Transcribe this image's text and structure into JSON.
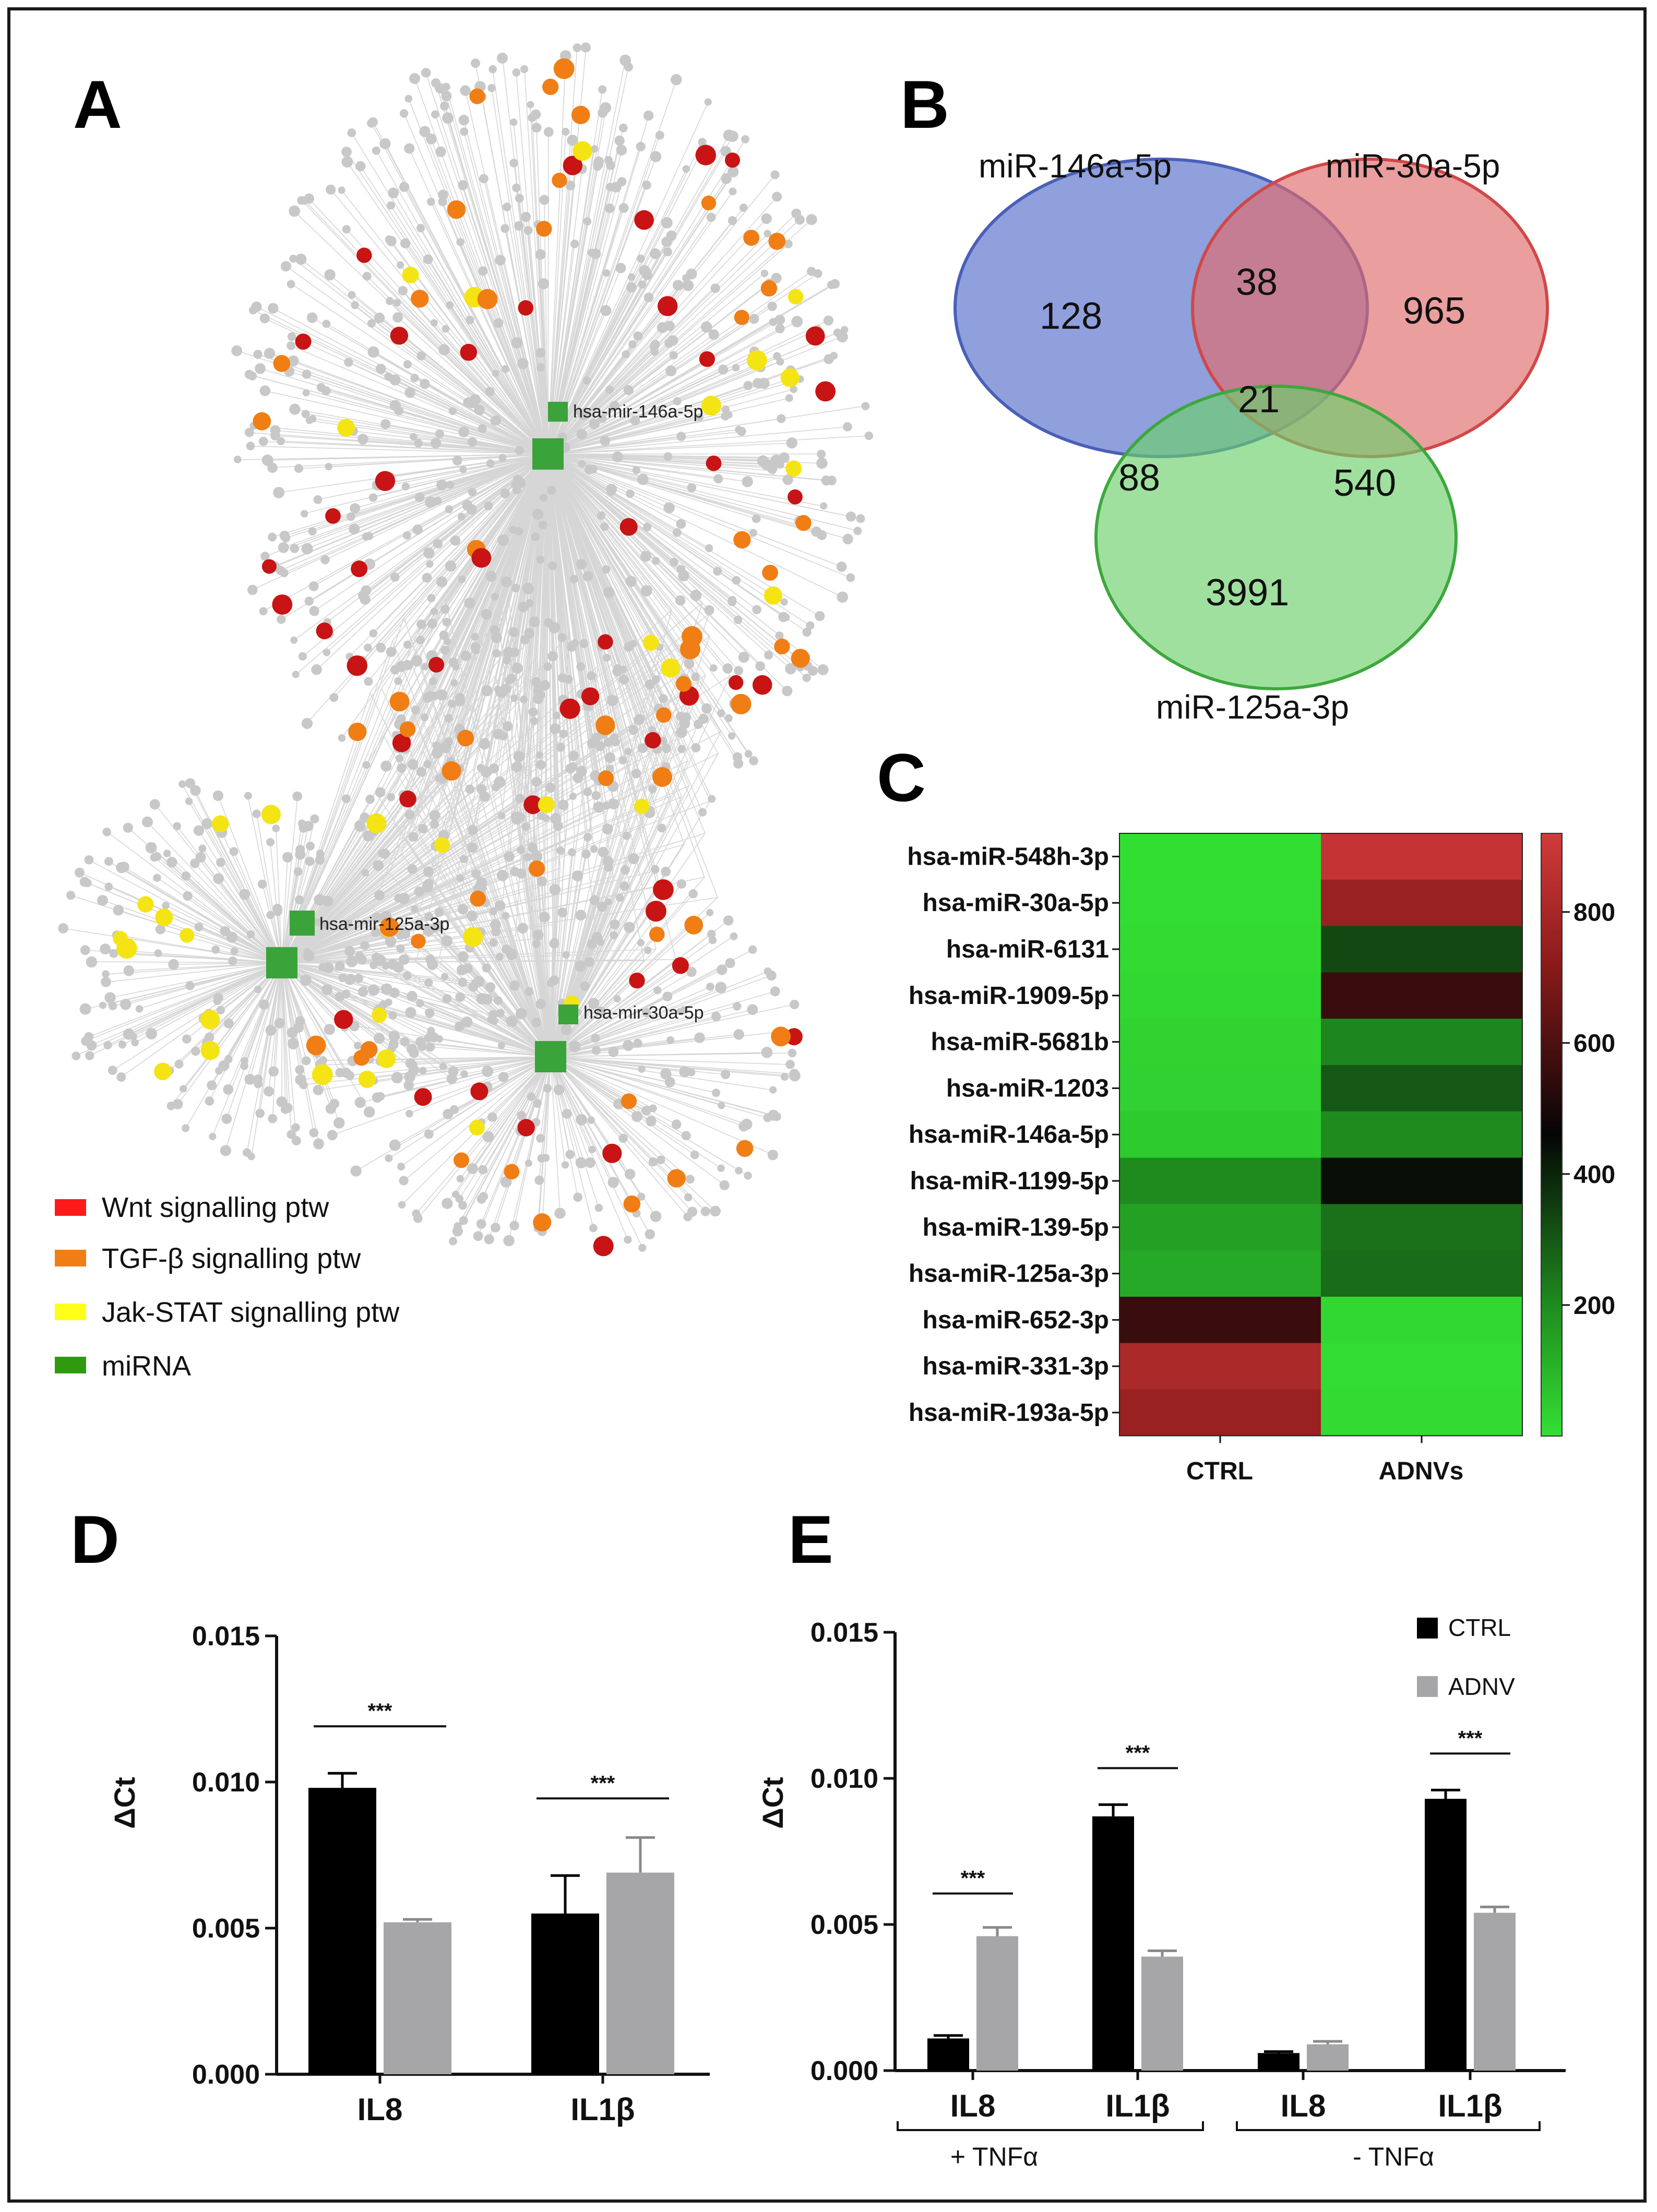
{
  "colors": {
    "wnt": "#c81414",
    "tgf": "#f07e14",
    "jak": "#f5e414",
    "mirna": "#3aa33a",
    "net_gray": "#c8c8c8",
    "ctrl_bar": "#000000",
    "adnv_bar": "#a6a6a8",
    "venn_blue": "#6a80d0",
    "venn_red": "#e06a6a",
    "venn_green": "#6ccf6c"
  },
  "panel_letters": {
    "a": "A",
    "b": "B",
    "c": "C",
    "d": "D",
    "e": "E"
  },
  "network": {
    "legend": [
      {
        "label": "Wnt signalling ptw",
        "color_key": "wnt"
      },
      {
        "label": "TGF-β signalling ptw",
        "color_key": "tgf"
      },
      {
        "label": "Jak-STAT signalling ptw",
        "color_key": "jak"
      },
      {
        "label": "miRNA",
        "color_key": "mirna"
      }
    ],
    "hub_labels": {
      "mir146": "hsa-mir-146a-5p",
      "mir125": "hsa-mir-125a-3p",
      "mir30": "hsa-mir-30a-5p"
    }
  },
  "chart_data": [
    {
      "type": "venn",
      "panel": "B",
      "sets": [
        "miR-146a-5p",
        "miR-30a-5p",
        "miR-125a-3p"
      ],
      "regions": {
        "only_146": 128,
        "only_30": 965,
        "only_125": 3991,
        "146_30": 38,
        "146_125": 88,
        "30_125": 540,
        "all_three": 21
      }
    },
    {
      "type": "heatmap",
      "panel": "C",
      "rows": [
        "hsa-miR-548h-3p",
        "hsa-miR-30a-5p",
        "hsa-miR-6131",
        "hsa-miR-1909-5p",
        "hsa-miR-5681b",
        "hsa-miR-1203",
        "hsa-miR-146a-5p",
        "hsa-miR-1199-5p",
        "hsa-miR-139-5p",
        "hsa-miR-125a-3p",
        "hsa-miR-652-3p",
        "hsa-miR-331-3p",
        "hsa-miR-193a-5p"
      ],
      "columns": [
        "CTRL",
        "ADNVs"
      ],
      "values": [
        [
          5,
          880
        ],
        [
          10,
          760
        ],
        [
          15,
          330
        ],
        [
          20,
          560
        ],
        [
          30,
          210
        ],
        [
          35,
          300
        ],
        [
          50,
          200
        ],
        [
          200,
          440
        ],
        [
          150,
          250
        ],
        [
          130,
          260
        ],
        [
          560,
          20
        ],
        [
          810,
          10
        ],
        [
          760,
          15
        ]
      ],
      "colorbar": {
        "min": 0,
        "max": 920,
        "ticks": [
          "200",
          "400",
          "600",
          "800"
        ],
        "tick_values": [
          200,
          400,
          600,
          800
        ]
      }
    },
    {
      "type": "bar",
      "panel": "D",
      "ylabel": "ΔCt",
      "ylim": [
        0,
        0.015
      ],
      "yticks": [
        "0.000",
        "0.005",
        "0.010",
        "0.015"
      ],
      "ytick_values": [
        0,
        0.005,
        0.01,
        0.015
      ],
      "categories": [
        "IL8",
        "IL1β"
      ],
      "series": [
        {
          "name": "CTRL",
          "values": [
            0.0098,
            0.0055
          ],
          "errors": [
            0.0005,
            0.0013
          ]
        },
        {
          "name": "ADNV",
          "values": [
            0.0052,
            0.0069
          ],
          "errors": [
            0.0001,
            0.0012
          ]
        }
      ],
      "significance": [
        "***",
        "***"
      ]
    },
    {
      "type": "bar",
      "panel": "E",
      "ylabel": "ΔCt",
      "ylim": [
        0,
        0.015
      ],
      "yticks": [
        "0.000",
        "0.005",
        "0.010",
        "0.015"
      ],
      "ytick_values": [
        0,
        0.005,
        0.01,
        0.015
      ],
      "categories": [
        "IL8",
        "IL1β",
        "IL8",
        "IL1β"
      ],
      "groups": [
        "+ TNFα",
        "- TNFα"
      ],
      "series": [
        {
          "name": "CTRL",
          "values": [
            0.0011,
            0.0087,
            0.0006,
            0.0093
          ],
          "errors": [
            0.0001,
            0.0004,
            5e-05,
            0.0003
          ]
        },
        {
          "name": "ADNV",
          "values": [
            0.0046,
            0.0039,
            0.0009,
            0.0054
          ],
          "errors": [
            0.0003,
            0.0002,
            0.0001,
            0.0002
          ]
        }
      ],
      "significance": [
        "***",
        "***",
        "",
        "***"
      ],
      "legend": [
        "CTRL",
        "ADNV"
      ]
    }
  ]
}
